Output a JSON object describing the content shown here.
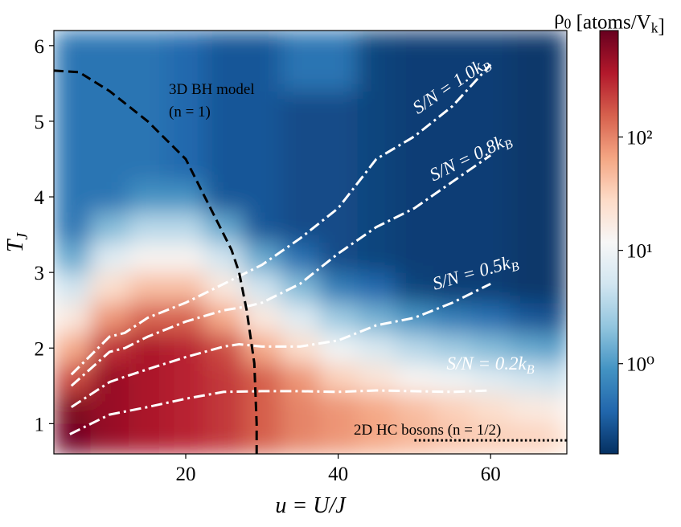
{
  "chart_data": {
    "type": "heatmap",
    "x": [
      5,
      10,
      15,
      20,
      25,
      30,
      35,
      40,
      45,
      50,
      55,
      60,
      65,
      70
    ],
    "y": [
      0.8,
      1.2,
      1.6,
      2.0,
      2.4,
      2.8,
      3.2,
      3.6,
      4.0,
      4.4,
      4.8,
      5.2,
      5.6,
      6.0
    ],
    "z": [
      [
        800,
        500,
        400,
        320,
        250,
        160,
        100,
        80,
        63,
        50,
        40,
        35,
        32,
        28
      ],
      [
        660,
        500,
        400,
        320,
        250,
        160,
        100,
        80,
        63,
        45,
        33,
        25,
        18,
        16
      ],
      [
        200,
        500,
        400,
        320,
        250,
        160,
        80,
        33,
        21,
        13,
        10,
        7,
        5,
        4
      ],
      [
        60,
        270,
        400,
        320,
        200,
        60,
        25,
        10,
        6,
        3.5,
        2.5,
        1.8,
        1.3,
        1.0
      ],
      [
        18,
        80,
        150,
        150,
        60,
        18,
        7,
        2.5,
        1.5,
        0.9,
        0.6,
        0.45,
        0.3,
        0.25
      ],
      [
        5,
        25,
        45,
        45,
        18,
        5,
        1.8,
        0.6,
        0.4,
        0.22,
        0.2,
        0.2,
        0.18,
        0.18
      ],
      [
        1.3,
        7,
        13,
        13,
        5,
        1.3,
        0.45,
        0.25,
        0.22,
        0.2,
        0.2,
        0.2,
        0.18,
        0.18
      ],
      [
        0.5,
        1.8,
        3.5,
        3.5,
        1.3,
        0.3,
        0.25,
        0.25,
        0.22,
        0.2,
        0.2,
        0.2,
        0.18,
        0.18
      ],
      [
        0.5,
        0.5,
        0.9,
        0.9,
        0.3,
        0.3,
        0.25,
        0.25,
        0.22,
        0.2,
        0.2,
        0.2,
        0.18,
        0.18
      ],
      [
        0.5,
        0.5,
        0.5,
        0.4,
        0.3,
        0.3,
        0.25,
        0.25,
        0.22,
        0.2,
        0.2,
        0.2,
        0.18,
        0.18
      ],
      [
        0.5,
        0.5,
        0.5,
        0.4,
        0.3,
        0.3,
        0.25,
        0.25,
        0.22,
        0.2,
        0.2,
        0.2,
        0.18,
        0.18
      ],
      [
        0.5,
        0.5,
        0.5,
        0.4,
        0.3,
        0.3,
        0.25,
        0.25,
        0.22,
        0.2,
        0.2,
        0.2,
        0.18,
        0.18
      ],
      [
        0.5,
        0.5,
        0.5,
        0.4,
        0.3,
        0.3,
        0.5,
        0.5,
        0.22,
        0.2,
        0.2,
        0.2,
        0.18,
        0.18
      ],
      [
        0.5,
        0.5,
        0.5,
        0.4,
        0.3,
        0.3,
        0.5,
        0.5,
        0.22,
        0.2,
        0.2,
        0.2,
        0.18,
        0.18
      ]
    ],
    "xlim": [
      2.7,
      70
    ],
    "ylim": [
      0.6,
      6.2
    ],
    "xticks": [
      20,
      40,
      60
    ],
    "yticks": [
      1,
      2,
      3,
      4,
      5,
      6
    ],
    "xlabel": "u = U/J",
    "ylabel": "TJ",
    "colorbar_label": "ρ0 [atoms/Vk]",
    "colormap": "RdBu_r",
    "log_color": true,
    "clim": [
      0.16,
      870
    ],
    "cticks": [
      {
        "value": 1,
        "label": "10⁰"
      },
      {
        "value": 10,
        "label": "10¹"
      },
      {
        "value": 100,
        "label": "10²"
      }
    ],
    "lines": [
      {
        "name": "S/N = 1.0kB",
        "color": "#ffffff",
        "style": "dashdot",
        "x": [
          5,
          10,
          12,
          15,
          20,
          25,
          30,
          35,
          40,
          45,
          50,
          55,
          60
        ],
        "y": [
          1.65,
          2.15,
          2.2,
          2.4,
          2.6,
          2.85,
          3.1,
          3.45,
          3.85,
          4.5,
          4.8,
          5.2,
          5.75
        ]
      },
      {
        "name": "S/N = 0.8kB",
        "color": "#ffffff",
        "style": "dashdot",
        "x": [
          5,
          10,
          12,
          15,
          20,
          25,
          28,
          30,
          35,
          40,
          45,
          50,
          55,
          60
        ],
        "y": [
          1.5,
          1.95,
          2.0,
          2.15,
          2.35,
          2.5,
          2.55,
          2.6,
          2.85,
          3.25,
          3.6,
          3.85,
          4.2,
          4.55
        ]
      },
      {
        "name": "S/N = 0.5kB",
        "color": "#ffffff",
        "style": "dashdot",
        "x": [
          5,
          10,
          12,
          15,
          20,
          25,
          27,
          30,
          35,
          40,
          45,
          50,
          55,
          60
        ],
        "y": [
          1.22,
          1.55,
          1.62,
          1.72,
          1.88,
          2.02,
          2.05,
          2.02,
          2.02,
          2.1,
          2.3,
          2.4,
          2.6,
          2.85
        ]
      },
      {
        "name": "S/N = 0.2kB",
        "color": "#ffffff",
        "style": "dashdot",
        "x": [
          4.8,
          10,
          15,
          20,
          25,
          30,
          35,
          40,
          45,
          50,
          55,
          60
        ],
        "y": [
          0.86,
          1.12,
          1.22,
          1.33,
          1.42,
          1.43,
          1.43,
          1.42,
          1.44,
          1.43,
          1.42,
          1.44
        ]
      },
      {
        "color": "#000000",
        "style": "dashed",
        "x": [
          2.7,
          6,
          10,
          15,
          20,
          23,
          26,
          27,
          28,
          29,
          29.3,
          29.3
        ],
        "y": [
          5.67,
          5.65,
          5.4,
          5.0,
          4.5,
          3.9,
          3.3,
          3.0,
          2.5,
          1.8,
          1.0,
          0.6
        ]
      },
      {
        "color": "#000000",
        "style": "dotted",
        "x": [
          50,
          70
        ],
        "y": [
          0.78,
          0.78
        ]
      }
    ],
    "annotations": [
      {
        "text": "3D BH model"
      },
      {
        "text": "(n = 1)"
      },
      {
        "text": "2D HC bosons (n = 1/2)"
      }
    ]
  }
}
